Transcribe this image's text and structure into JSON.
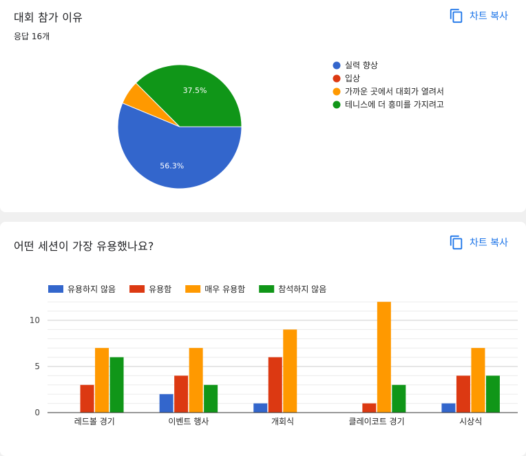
{
  "cards": [
    {
      "title": "대회 참가 이유",
      "responses": "응답 16개",
      "copy_label": "차트 복사"
    },
    {
      "title": "어떤 세션이 가장 유용했나요?",
      "copy_label": "차트 복사"
    }
  ],
  "chart_data": [
    {
      "type": "pie",
      "labels": [
        "실력 향상",
        "입상",
        "가까운 곳에서 대회가 열려서",
        "테니스에 더 흥미를 가지려고"
      ],
      "values": [
        9,
        0,
        1,
        6
      ],
      "percent_labels": [
        "56.3%",
        "",
        "",
        "37.5%"
      ],
      "colors": [
        "#3366cc",
        "#dc3912",
        "#ff9900",
        "#109618"
      ],
      "legend": "right"
    },
    {
      "type": "bar",
      "categories": [
        "레드볼 경기",
        "이벤트 행사",
        "개회식",
        "클레이코트 경기",
        "시상식"
      ],
      "series": [
        {
          "name": "유용하지 않음",
          "values": [
            0,
            2,
            1,
            0,
            1
          ],
          "color": "#3366cc"
        },
        {
          "name": "유용함",
          "values": [
            3,
            4,
            6,
            1,
            4
          ],
          "color": "#dc3912"
        },
        {
          "name": "매우 유용함",
          "values": [
            7,
            7,
            9,
            12,
            7
          ],
          "color": "#ff9900"
        },
        {
          "name": "참석하지 않음",
          "values": [
            6,
            3,
            0,
            3,
            4
          ],
          "color": "#109618"
        }
      ],
      "yticks": [
        "0",
        "5",
        "10"
      ],
      "ylim": [
        0,
        12.5
      ],
      "grid": true,
      "legend": "top-left"
    }
  ]
}
